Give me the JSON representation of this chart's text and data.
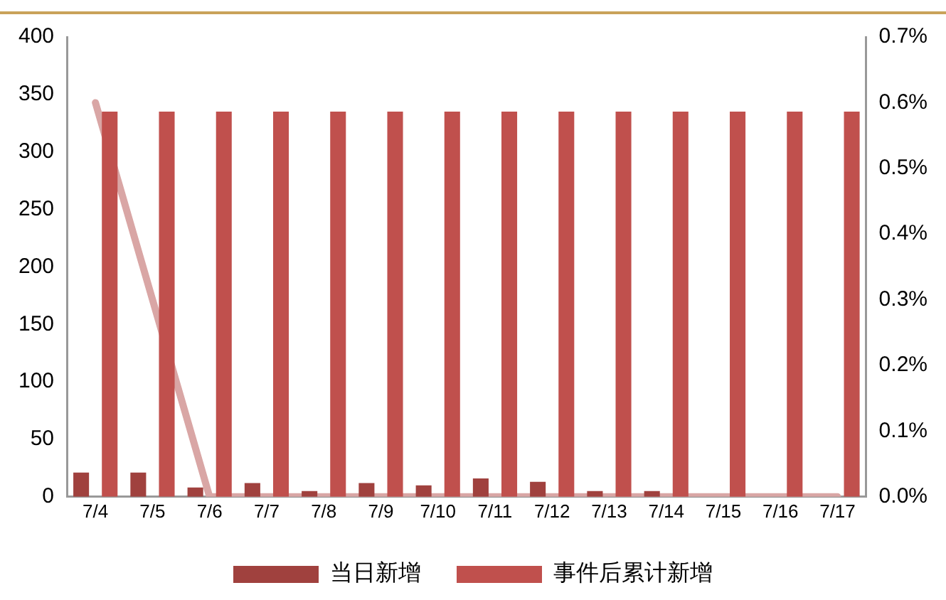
{
  "chart_data": {
    "type": "bar",
    "categories": [
      "7/4",
      "7/5",
      "7/6",
      "7/7",
      "7/8",
      "7/9",
      "7/10",
      "7/11",
      "7/12",
      "7/13",
      "7/14",
      "7/15",
      "7/16",
      "7/17"
    ],
    "series": [
      {
        "name": "当日新增",
        "color": "#a0413e",
        "values": [
          21,
          21,
          8,
          12,
          5,
          12,
          10,
          16,
          13,
          5,
          5,
          0,
          0,
          0
        ]
      },
      {
        "name": "事件后累计新增",
        "color": "#c0504d",
        "values": [
          335,
          335,
          335,
          335,
          335,
          335,
          335,
          335,
          335,
          335,
          335,
          335,
          335,
          335
        ]
      },
      {
        "type": "line",
        "axis": "y2",
        "color": "#d9a6a5",
        "values": [
          0.6,
          0.3,
          0,
          0,
          0,
          0,
          0,
          0,
          0,
          0,
          0,
          0,
          0,
          0
        ]
      }
    ],
    "ylim": [
      0,
      400
    ],
    "yticks": [
      0,
      50,
      100,
      150,
      200,
      250,
      300,
      350,
      400
    ],
    "y2lim": [
      0,
      0.7
    ],
    "y2ticks": [
      {
        "value": 0,
        "label": "0.0%"
      },
      {
        "value": 0.1,
        "label": "0.1%"
      },
      {
        "value": 0.2,
        "label": "0.2%"
      },
      {
        "value": 0.3,
        "label": "0.3%"
      },
      {
        "value": 0.4,
        "label": "0.4%"
      },
      {
        "value": 0.5,
        "label": "0.5%"
      },
      {
        "value": 0.6,
        "label": "0.6%"
      },
      {
        "value": 0.7,
        "label": "0.7%"
      }
    ],
    "grid": false,
    "legend": "bottom",
    "marker": "none",
    "line_style": "solid"
  }
}
